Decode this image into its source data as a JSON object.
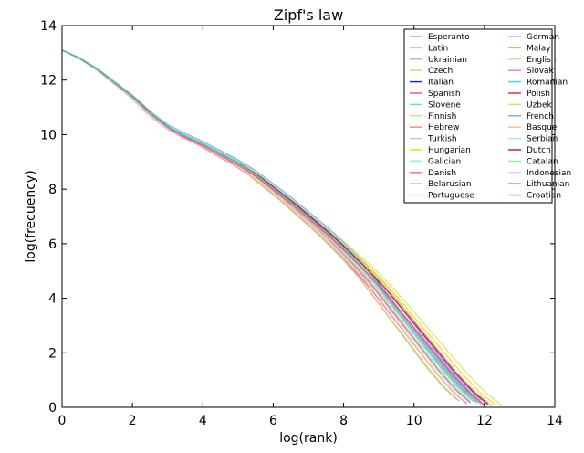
{
  "chart_data": {
    "type": "line",
    "title": "Zipf's law",
    "xlabel": "log(rank)",
    "ylabel": "log(frecuency)",
    "xlim": [
      0,
      14
    ],
    "ylim": [
      0,
      14
    ],
    "xticks": [
      0,
      2,
      4,
      6,
      8,
      10,
      12,
      14
    ],
    "yticks": [
      0,
      2,
      4,
      6,
      8,
      10,
      12,
      14
    ],
    "grid": false,
    "legend_position": "top-right",
    "legend_columns": 2,
    "series_x": [
      0.0,
      0.5,
      1.0,
      1.5,
      2.0,
      2.5,
      3.0,
      3.5,
      4.0,
      4.5,
      5.0,
      5.5,
      6.0,
      6.5,
      7.0,
      7.5,
      8.0,
      8.5,
      9.0,
      9.5,
      10.0,
      10.5,
      11.0,
      11.5,
      12.0
    ],
    "series_y": [
      13.1,
      12.8,
      12.4,
      11.9,
      11.4,
      10.8,
      10.3,
      9.95,
      9.65,
      9.3,
      8.95,
      8.55,
      8.05,
      7.55,
      7.0,
      6.45,
      5.85,
      5.2,
      4.5,
      3.7,
      2.9,
      2.1,
      1.3,
      0.6,
      0.05
    ],
    "series": [
      {
        "name": "Esperanto",
        "color": "#7fbfe8",
        "lenX": 11.6,
        "offset": 0.35
      },
      {
        "name": "Latin",
        "color": "#9fe0a0",
        "lenX": 11.4,
        "offset": 0.15
      },
      {
        "name": "Ukrainian",
        "color": "#b7b7ee",
        "lenX": 11.9,
        "offset": -0.1
      },
      {
        "name": "Czech",
        "color": "#f0c870",
        "lenX": 12.1,
        "offset": 0.05
      },
      {
        "name": "Italian",
        "color": "#1f2f8f",
        "lenX": 11.8,
        "offset": 0.2
      },
      {
        "name": "Spanish",
        "color": "#e84fa0",
        "lenX": 11.5,
        "offset": -0.05
      },
      {
        "name": "Slovene",
        "color": "#66ddd0",
        "lenX": 11.7,
        "offset": 0.1
      },
      {
        "name": "Finnish",
        "color": "#c8ee66",
        "lenX": 12.5,
        "offset": -0.25
      },
      {
        "name": "Hebrew",
        "color": "#f08a8a",
        "lenX": 11.6,
        "offset": 0.0
      },
      {
        "name": "Turkish",
        "color": "#aaccee",
        "lenX": 12.2,
        "offset": -0.2
      },
      {
        "name": "Hungarian",
        "color": "#ffd700",
        "lenX": 12.3,
        "offset": -0.15
      },
      {
        "name": "Galician",
        "color": "#8ef0c8",
        "lenX": 11.2,
        "offset": 0.25
      },
      {
        "name": "Danish",
        "color": "#ff66cc",
        "lenX": 11.6,
        "offset": 0.05
      },
      {
        "name": "Belarusian",
        "color": "#aab4bb",
        "lenX": 11.9,
        "offset": -0.05
      },
      {
        "name": "Portuguese",
        "color": "#ffe066",
        "lenX": 11.7,
        "offset": 0.3
      },
      {
        "name": "German",
        "color": "#88ccff",
        "lenX": 11.9,
        "offset": -0.1
      },
      {
        "name": "Malay",
        "color": "#ffaa55",
        "lenX": 11.3,
        "offset": 0.1
      },
      {
        "name": "English",
        "color": "#bbeeaa",
        "lenX": 11.8,
        "offset": 0.0
      },
      {
        "name": "Slovak",
        "color": "#ee77ee",
        "lenX": 12.0,
        "offset": -0.15
      },
      {
        "name": "Romanian",
        "color": "#44dddd",
        "lenX": 11.7,
        "offset": 0.12
      },
      {
        "name": "Polish",
        "color": "#dd3355",
        "lenX": 12.1,
        "offset": -0.08
      },
      {
        "name": "Uzbek",
        "color": "#d9e066",
        "lenX": 11.4,
        "offset": 0.18
      },
      {
        "name": "French",
        "color": "#77aaff",
        "lenX": 11.9,
        "offset": 0.22
      },
      {
        "name": "Basque",
        "color": "#ffbb99",
        "lenX": 11.8,
        "offset": -0.02
      },
      {
        "name": "Serbian",
        "color": "#a0e8f8",
        "lenX": 12.0,
        "offset": 0.08
      },
      {
        "name": "Dutch",
        "color": "#cc2222",
        "lenX": 12.1,
        "offset": -0.12
      },
      {
        "name": "Catalan",
        "color": "#99ee99",
        "lenX": 11.6,
        "offset": 0.14
      },
      {
        "name": "Indonesian",
        "color": "#d8d8f0",
        "lenX": 11.5,
        "offset": 0.02
      },
      {
        "name": "Lithuanian",
        "color": "#ff4488",
        "lenX": 12.0,
        "offset": -0.18
      },
      {
        "name": "Croatian",
        "color": "#33ccbb",
        "lenX": 11.8,
        "offset": 0.06
      }
    ]
  }
}
